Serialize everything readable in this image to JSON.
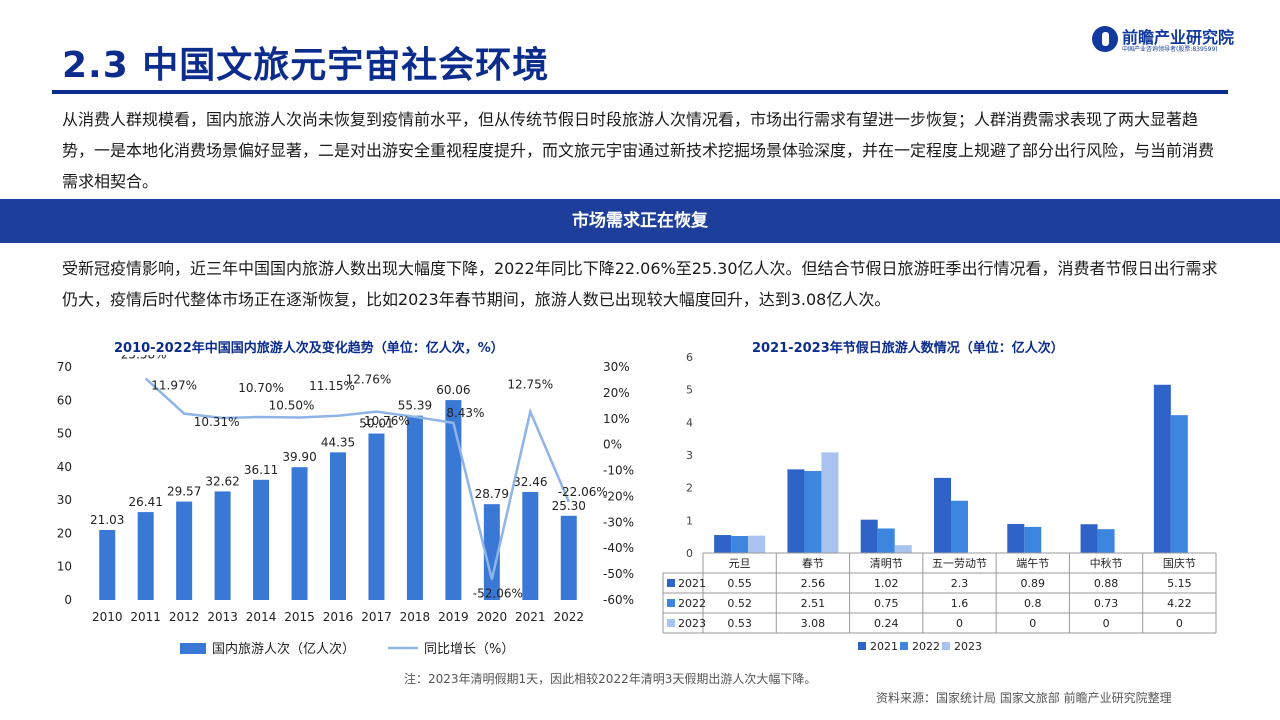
{
  "header": {
    "title": "2.3 中国文旅元宇宙社会环境",
    "logo_text": "前瞻产业研究院",
    "logo_sub": "中国产业咨询领导者(股票:839599)"
  },
  "intro": "从消费人群规模看，国内旅游人次尚未恢复到疫情前水平，但从传统节假日时段旅游人次情况看，市场出行需求有望进一步恢复；人群消费需求表现了两大显著趋势，一是本地化消费场景偏好显著，二是对出游安全重视程度提升，而文旅元宇宙通过新技术挖掘场景体验深度，并在一定程度上规避了部分出行风险，与当前消费需求相契合。",
  "banner": "市场需求正在恢复",
  "paragraph": "受新冠疫情影响，近三年中国国内旅游人数出现大幅度下降，2022年同比下降22.06%至25.30亿人次。但结合节假日旅游旺季出行情况看，消费者节假日出行需求仍大，疫情后时代整体市场正在逐渐恢复，比如2023年春节期间，旅游人数已出现较大幅度回升，达到3.08亿人次。",
  "note": "注：2023年清明假期1天，因此相较2022年清明3天假期出游人次大幅下降。",
  "source": "资料来源：国家统计局 国家文旅部 前瞻产业研究院整理",
  "chart_data": [
    {
      "type": "bar",
      "title": "2010-2022年中国国内旅游人次及变化趋势（单位：亿人次，%）",
      "categories": [
        "2010",
        "2011",
        "2012",
        "2013",
        "2014",
        "2015",
        "2016",
        "2017",
        "2018",
        "2019",
        "2020",
        "2021",
        "2022"
      ],
      "series": [
        {
          "name": "国内旅游人次（亿人次）",
          "type": "bar",
          "axis": "left",
          "values": [
            21.03,
            26.41,
            29.57,
            32.62,
            36.11,
            39.9,
            44.35,
            50.01,
            55.39,
            60.06,
            28.79,
            32.46,
            25.3
          ],
          "labels": [
            "21.03",
            "26.41",
            "29.57",
            "32.62",
            "36.11",
            "39.90",
            "44.35",
            "50.01",
            "55.39",
            "60.06",
            "28.79",
            "32.46",
            "25.30"
          ]
        },
        {
          "name": "同比增长（%）",
          "type": "line",
          "axis": "right",
          "values": [
            null,
            25.58,
            11.97,
            10.31,
            10.7,
            10.5,
            11.15,
            12.76,
            10.76,
            8.43,
            -52.06,
            12.75,
            -22.06
          ],
          "labels": [
            "",
            "25.58%",
            "11.97%",
            "10.31%",
            "10.70%",
            "10.50%",
            "11.15%",
            "12.76%",
            "10.76%",
            "8.43%",
            "-52.06%",
            "12.75%",
            "-22.06%"
          ]
        }
      ],
      "ylim": [
        0,
        70
      ],
      "yticks": [
        "0",
        "10",
        "20",
        "30",
        "40",
        "50",
        "60",
        "70"
      ],
      "y2lim": [
        -60,
        30
      ],
      "y2ticks": [
        "-60%",
        "-50%",
        "-40%",
        "-30%",
        "-20%",
        "-10%",
        "0%",
        "10%",
        "20%",
        "30%"
      ],
      "legend": "bottom",
      "colors": {
        "bar": "#3a78d6",
        "line": "#8fb4e8"
      }
    },
    {
      "type": "bar",
      "title": "2021-2023年节假日旅游人数情况（单位：亿人次）",
      "categories": [
        "元旦",
        "春节",
        "清明节",
        "五一劳动节",
        "端午节",
        "中秋节",
        "国庆节"
      ],
      "series": [
        {
          "name": "2021",
          "values": [
            0.55,
            2.56,
            1.02,
            2.3,
            0.89,
            0.88,
            5.15
          ],
          "labels": [
            "0.55",
            "2.56",
            "1.02",
            "2.3",
            "0.89",
            "0.88",
            "5.15"
          ],
          "color": "#2f63c7"
        },
        {
          "name": "2022",
          "values": [
            0.52,
            2.51,
            0.75,
            1.6,
            0.8,
            0.73,
            4.22
          ],
          "labels": [
            "0.52",
            "2.51",
            "0.75",
            "1.6",
            "0.8",
            "0.73",
            "4.22"
          ],
          "color": "#3d86e0"
        },
        {
          "name": "2023",
          "values": [
            0.53,
            3.08,
            0.24,
            0,
            0,
            0,
            0
          ],
          "labels": [
            "0.53",
            "3.08",
            "0.24",
            "0",
            "0",
            "0",
            "0"
          ],
          "color": "#a9c2ef"
        }
      ],
      "ylim": [
        0,
        6
      ],
      "yticks": [
        "0",
        "1",
        "2",
        "3",
        "4",
        "5",
        "6"
      ],
      "legend": "bottom",
      "with_data_table": true
    }
  ]
}
